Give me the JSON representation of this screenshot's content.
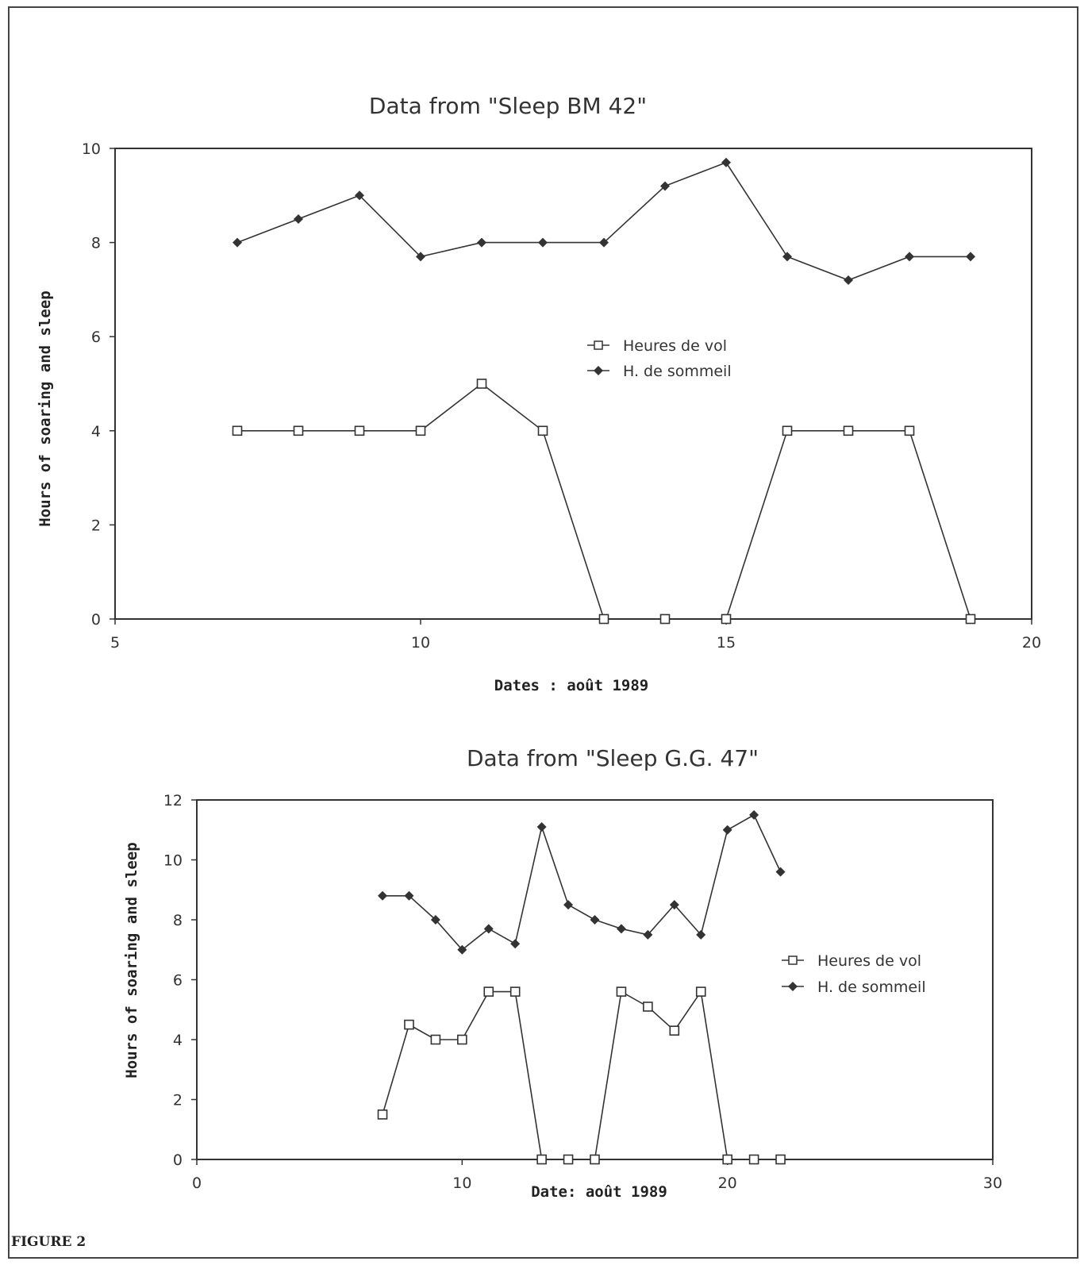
{
  "figure_label": "FIGURE 2",
  "chart_data": [
    {
      "type": "line",
      "title": "Data from \"Sleep BM 42\"",
      "xlabel": "Dates : août 1989",
      "ylabel": "Hours of soaring and sleep",
      "xlim": [
        5,
        20
      ],
      "ylim": [
        0,
        10
      ],
      "x_ticks": [
        5,
        10,
        15,
        20
      ],
      "y_ticks": [
        0,
        2,
        4,
        6,
        8,
        10
      ],
      "legend_position": "center",
      "series": [
        {
          "name": "Heures de vol",
          "marker": "open-square",
          "color": "#333333",
          "x": [
            7,
            8,
            9,
            10,
            11,
            12,
            13,
            14,
            15,
            16,
            17,
            18,
            19
          ],
          "y": [
            4.0,
            4.0,
            4.0,
            4.0,
            5.0,
            4.0,
            0.0,
            0.0,
            0.0,
            4.0,
            4.0,
            4.0,
            0.0
          ]
        },
        {
          "name": "H. de sommeil",
          "marker": "filled-diamond",
          "color": "#333333",
          "x": [
            7,
            8,
            9,
            10,
            11,
            12,
            13,
            14,
            15,
            16,
            17,
            18,
            19
          ],
          "y": [
            8.0,
            8.5,
            9.0,
            7.7,
            8.0,
            8.0,
            8.0,
            9.2,
            9.7,
            7.7,
            7.2,
            7.7,
            7.7
          ]
        }
      ]
    },
    {
      "type": "line",
      "title": "Data from \"Sleep G.G. 47\"",
      "xlabel": "Date: août 1989",
      "ylabel": "Hours of soaring and sleep",
      "xlim": [
        0,
        30
      ],
      "ylim": [
        0,
        12
      ],
      "x_ticks": [
        0,
        10,
        20,
        30
      ],
      "y_ticks": [
        0,
        2,
        4,
        6,
        8,
        10,
        12
      ],
      "legend_position": "right",
      "series": [
        {
          "name": "Heures de vol",
          "marker": "open-square",
          "color": "#333333",
          "x": [
            7,
            8,
            9,
            10,
            11,
            12,
            13,
            14,
            15,
            16,
            17,
            18,
            19,
            20,
            21,
            22
          ],
          "y": [
            1.5,
            4.5,
            4.0,
            4.0,
            5.6,
            5.6,
            0.0,
            0.0,
            0.0,
            5.6,
            5.1,
            4.3,
            5.6,
            0.0,
            0.0,
            0.0
          ]
        },
        {
          "name": "H. de sommeil",
          "marker": "filled-diamond",
          "color": "#333333",
          "x": [
            7,
            8,
            9,
            10,
            11,
            12,
            13,
            14,
            15,
            16,
            17,
            18,
            19,
            20,
            21,
            22
          ],
          "y": [
            8.8,
            8.8,
            8.0,
            7.0,
            7.7,
            7.2,
            11.1,
            8.5,
            8.0,
            7.7,
            7.5,
            8.5,
            7.5,
            11.0,
            11.5,
            9.6
          ]
        }
      ]
    }
  ]
}
